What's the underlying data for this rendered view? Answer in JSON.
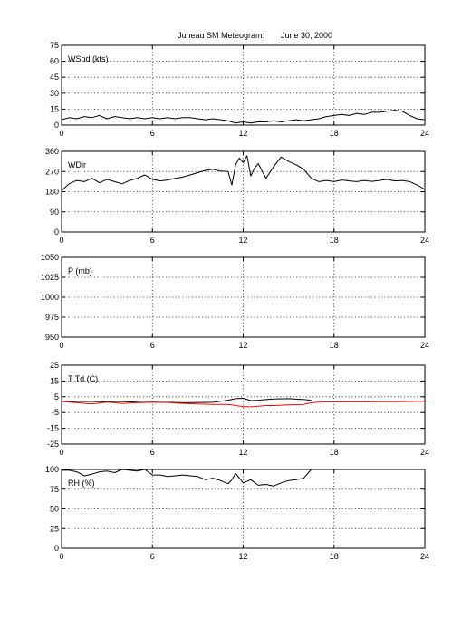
{
  "figure": {
    "title_prefix": "Juneau SM Meteogram:",
    "title_date": "June 30, 2000"
  },
  "chart_data": [
    {
      "type": "line",
      "label": "WSpd (kts)",
      "xlim": [
        0,
        24
      ],
      "xticks": [
        0,
        6,
        12,
        18,
        24
      ],
      "ylim": [
        0,
        75
      ],
      "yticks": [
        0,
        15,
        30,
        45,
        60,
        75
      ],
      "grid": true,
      "series": [
        {
          "color": "#000000",
          "x": [
            0,
            0.5,
            1,
            1.5,
            2,
            2.5,
            3,
            3.5,
            4,
            4.5,
            5,
            5.5,
            6,
            6.5,
            7,
            7.5,
            8,
            8.5,
            9,
            9.5,
            10,
            10.5,
            11,
            11.5,
            12,
            12.5,
            13,
            13.5,
            14,
            14.5,
            15,
            15.5,
            16,
            16.5,
            17,
            17.5,
            18,
            18.5,
            19,
            19.5,
            20,
            20.5,
            21,
            21.5,
            22,
            22.5,
            23,
            23.5,
            24
          ],
          "values": [
            5,
            7,
            6,
            8,
            7,
            9,
            6,
            8,
            7,
            6,
            7,
            6,
            7,
            6,
            7,
            6,
            7,
            7,
            6,
            5,
            6,
            5,
            4,
            2,
            3,
            2,
            3,
            3,
            4,
            3,
            4,
            5,
            4,
            5,
            6,
            8,
            9,
            10,
            9,
            11,
            10,
            12,
            12,
            13,
            14,
            13,
            9,
            6,
            5
          ]
        }
      ]
    },
    {
      "type": "line",
      "label": "WDir",
      "xlim": [
        0,
        24
      ],
      "xticks": [
        0,
        6,
        12,
        18,
        24
      ],
      "ylim": [
        0,
        360
      ],
      "yticks": [
        0,
        90,
        180,
        270,
        360
      ],
      "grid": true,
      "series": [
        {
          "color": "#000000",
          "x": [
            0,
            0.5,
            1,
            1.5,
            2,
            2.5,
            3,
            3.5,
            4,
            4.5,
            5,
            5.5,
            6,
            6.5,
            7,
            7.5,
            8,
            8.5,
            9,
            9.5,
            10,
            10.5,
            11,
            11.25,
            11.5,
            11.75,
            12,
            12.25,
            12.5,
            12.75,
            13,
            13.5,
            14,
            14.5,
            15,
            15.5,
            16,
            16.5,
            17,
            17.5,
            18,
            18.5,
            19,
            19.5,
            20,
            20.5,
            21,
            21.5,
            22,
            22.5,
            23,
            23.5,
            24
          ],
          "values": [
            185,
            215,
            230,
            225,
            240,
            220,
            235,
            225,
            215,
            230,
            240,
            255,
            235,
            228,
            232,
            240,
            245,
            255,
            265,
            275,
            280,
            272,
            270,
            210,
            300,
            330,
            310,
            340,
            250,
            285,
            305,
            240,
            290,
            335,
            315,
            300,
            280,
            240,
            225,
            230,
            225,
            232,
            228,
            225,
            230,
            226,
            230,
            235,
            228,
            230,
            225,
            210,
            190
          ]
        }
      ]
    },
    {
      "type": "line",
      "label": "P (mb)",
      "xlim": [
        0,
        24
      ],
      "xticks": [
        0,
        6,
        12,
        18,
        24
      ],
      "ylim": [
        950,
        1050
      ],
      "yticks": [
        950,
        975,
        1000,
        1025,
        1050
      ],
      "grid": true,
      "series": []
    },
    {
      "type": "line",
      "label": "T Td (C)",
      "xlim": [
        0,
        24
      ],
      "xticks": [
        0,
        6,
        12,
        18,
        24
      ],
      "ylim": [
        -25,
        25
      ],
      "yticks": [
        -25,
        -15,
        -5,
        5,
        15,
        25
      ],
      "grid": true,
      "series": [
        {
          "color": "#000000",
          "x": [
            0,
            1,
            2,
            3,
            4,
            5,
            6,
            7,
            8,
            9,
            10,
            11,
            11.5,
            12,
            12.5,
            13,
            13.5,
            14,
            15,
            16,
            16.5
          ],
          "values": [
            2,
            2,
            2,
            1.8,
            2,
            1.5,
            1.5,
            1.5,
            1.2,
            1.4,
            1.5,
            2.8,
            3.8,
            4,
            2.6,
            2.8,
            3.2,
            3.6,
            3.8,
            3.2,
            2.8
          ]
        },
        {
          "color": "#ff0000",
          "x": [
            0,
            1,
            2,
            3,
            4,
            5,
            6,
            7,
            8,
            9,
            10,
            11,
            11.5,
            12,
            12.5,
            13,
            13.5,
            14,
            15,
            16,
            16.5,
            17,
            18,
            19,
            20,
            21,
            22,
            23,
            24
          ],
          "values": [
            2,
            1.2,
            0.5,
            1.6,
            0.8,
            1.2,
            1.6,
            1.4,
            0.8,
            0.4,
            0.2,
            0.2,
            -0.6,
            -1.2,
            -1.4,
            -1.0,
            -0.6,
            -0.6,
            -0.2,
            0.2,
            1.2,
            1.6,
            1.8,
            1.8,
            1.8,
            1.9,
            1.9,
            2.0,
            2.1
          ]
        }
      ]
    },
    {
      "type": "line",
      "label": "RH (%)",
      "xlim": [
        0,
        24
      ],
      "xticks": [
        0,
        6,
        12,
        18,
        24
      ],
      "ylim": [
        0,
        100
      ],
      "yticks": [
        0,
        25,
        50,
        75,
        100
      ],
      "grid": true,
      "series": [
        {
          "color": "#000000",
          "x": [
            0,
            0.5,
            1,
            1.5,
            2,
            2.5,
            3,
            3.5,
            4,
            4.5,
            5,
            5.5,
            6,
            6.5,
            7,
            7.5,
            8,
            8.5,
            9,
            9.5,
            10,
            10.5,
            11,
            11.25,
            11.5,
            12,
            12.5,
            13,
            13.5,
            14,
            14.5,
            15,
            15.5,
            16,
            16.5
          ],
          "values": [
            99,
            99,
            97,
            92,
            94,
            97,
            98,
            96,
            100,
            99,
            98,
            100,
            93,
            93,
            91,
            92,
            93,
            92,
            91,
            87,
            89,
            86,
            82,
            87,
            95,
            83,
            87,
            80,
            81,
            79,
            83,
            86,
            87,
            89,
            100
          ]
        }
      ]
    }
  ]
}
